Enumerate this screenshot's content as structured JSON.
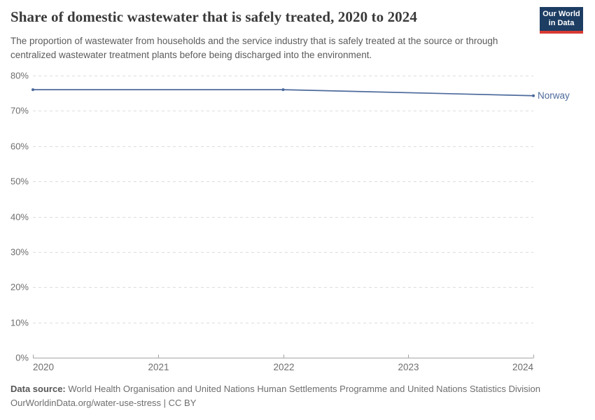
{
  "header": {
    "title": "Share of domestic wastewater that is safely treated, 2020 to 2024",
    "subtitle": "The proportion of wastewater from households and the service industry that is safely treated at the source or through centralized wastewater treatment plants before being discharged into the environment.",
    "logo": {
      "line1": "Our World",
      "line2": "in Data"
    }
  },
  "chart_data": {
    "type": "line",
    "title": "Share of domestic wastewater that is safely treated, 2020 to 2024",
    "series": [
      {
        "name": "Norway",
        "color": "#4c6a9c",
        "x": [
          2020,
          2022,
          2024
        ],
        "values": [
          76,
          76,
          74.3
        ]
      }
    ],
    "xlim": [
      2020,
      2024
    ],
    "ylim": [
      0,
      80
    ],
    "x_ticks": [
      2020,
      2021,
      2022,
      2023,
      2024
    ],
    "y_ticks": [
      0,
      10,
      20,
      30,
      40,
      50,
      60,
      70,
      80
    ],
    "y_tick_suffix": "%",
    "grid": "horizontal-dashed",
    "legend_position": "end-of-line-label"
  },
  "footer": {
    "data_source_label": "Data source:",
    "data_source_text": "World Health Organisation and United Nations Human Settlements Programme and United Nations Statistics Division",
    "citation": "OurWorldinData.org/water-use-stress | CC BY"
  },
  "colors": {
    "accent_line": "#4c6a9c",
    "grid": "#dcdcdc",
    "axis": "#a5a5a5",
    "tick_label": "#6e6e6e",
    "title": "#3a3a3a",
    "subtitle": "#5b5b5b",
    "logo_bg": "#1d3d63",
    "logo_stripe": "#d73a34"
  }
}
